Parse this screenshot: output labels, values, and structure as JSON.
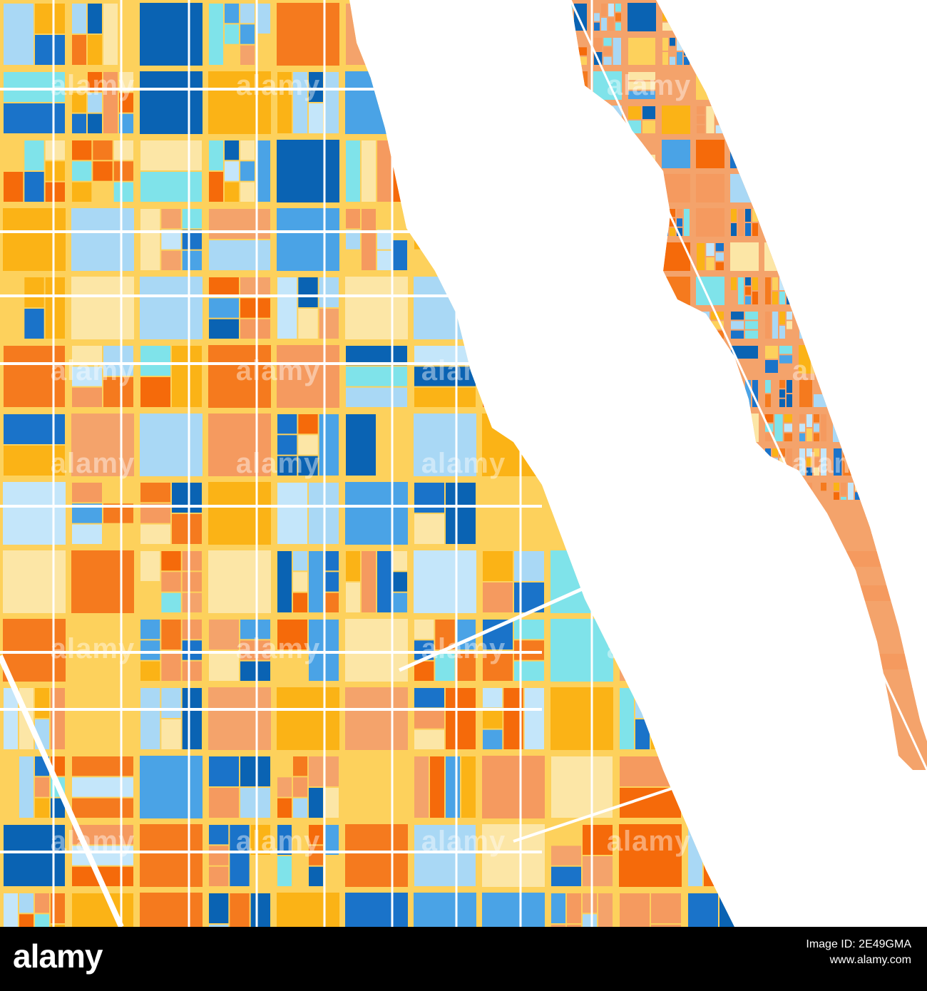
{
  "map": {
    "background": "#ffffff",
    "palette": [
      "#0a63b3",
      "#1a73c9",
      "#4aa3e6",
      "#a9d8f5",
      "#c4e6fa",
      "#7fe3ea",
      "#fbb316",
      "#fdd15c",
      "#fce6a6",
      "#f59a5f",
      "#f57a1e",
      "#f56a0a",
      "#f4a36b"
    ],
    "water_color": "#ffffff",
    "road_color": "#ffffff",
    "watermark_text": "alamy"
  },
  "footer": {
    "logo": "alamy",
    "image_id_label": "Image ID: 2E49GMA",
    "site": "www.alamy.com"
  }
}
